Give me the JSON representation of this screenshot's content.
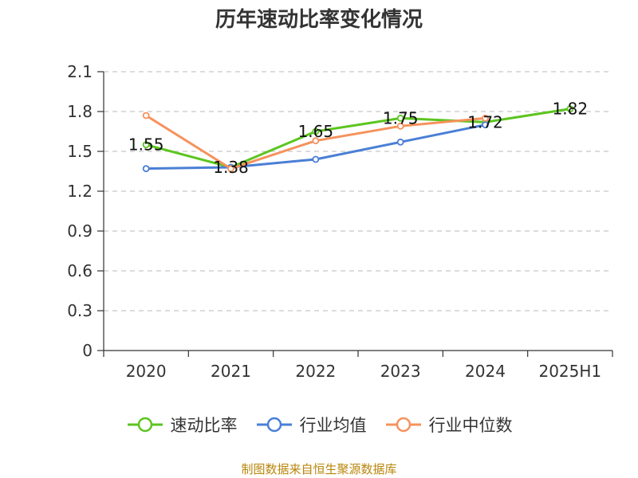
{
  "chart_data": {
    "type": "line",
    "title": "历年速动比率变化情况",
    "categories": [
      "2020",
      "2021",
      "2022",
      "2023",
      "2024",
      "2025H1"
    ],
    "yticks": [
      "0",
      "0.3",
      "0.6",
      "0.9",
      "1.2",
      "1.5",
      "1.8",
      "2.1"
    ],
    "ylim": [
      0,
      2.1
    ],
    "grid": true,
    "legend_position": "bottom",
    "series": [
      {
        "name": "速动比率",
        "color": "#5cc520",
        "values": [
          1.55,
          1.38,
          1.65,
          1.75,
          1.72,
          1.82
        ],
        "data_labels": [
          "1.55",
          "1.38",
          "1.65",
          "1.75",
          "1.72",
          "1.82"
        ]
      },
      {
        "name": "行业均值",
        "color": "#4a7fd6",
        "values": [
          1.37,
          1.38,
          1.44,
          1.57,
          1.7,
          null
        ]
      },
      {
        "name": "行业中位数",
        "color": "#f5925c",
        "values": [
          1.77,
          1.37,
          1.58,
          1.69,
          1.75,
          null
        ]
      }
    ]
  },
  "source": "制图数据来自恒生聚源数据库"
}
